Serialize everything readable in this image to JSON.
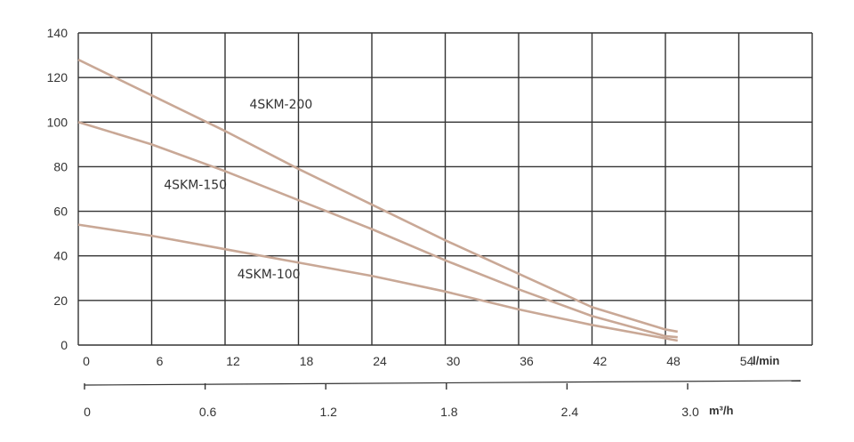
{
  "chart_data": {
    "type": "line",
    "title": "",
    "xlabel": "l/min",
    "xlabel_secondary": "m³/h",
    "ylabel": "",
    "xlim": [
      0,
      60
    ],
    "ylim": [
      0,
      140
    ],
    "grid": true,
    "x_ticks": [
      "0",
      "6",
      "12",
      "18",
      "24",
      "30",
      "36",
      "42",
      "48",
      "54"
    ],
    "x2_ticks": [
      "0",
      "0.6",
      "1.2",
      "1.8",
      "2.4",
      "3.0"
    ],
    "y_ticks": [
      "0",
      "20",
      "40",
      "60",
      "80",
      "100",
      "120",
      "140"
    ],
    "x": [
      0,
      6,
      12,
      18,
      24,
      30,
      36,
      42,
      48,
      49
    ],
    "series": [
      {
        "name": "4SKM-200",
        "values": [
          128,
          112,
          96,
          79,
          63,
          47,
          32,
          17,
          7,
          6
        ]
      },
      {
        "name": "4SKM-150",
        "values": [
          100,
          90,
          78,
          65,
          52,
          38,
          25,
          13,
          4,
          3.5
        ]
      },
      {
        "name": "4SKM-100",
        "values": [
          54,
          49,
          43,
          37,
          31,
          24,
          16,
          9,
          3,
          2
        ]
      }
    ],
    "annotations": [
      {
        "text": "4SKM-200",
        "x": 14,
        "y": 106
      },
      {
        "text": "4SKM-150",
        "x": 7,
        "y": 70
      },
      {
        "text": "4SKM-100",
        "x": 13,
        "y": 30
      }
    ],
    "line_color": "#c9a896",
    "grid_color": "#333333"
  }
}
